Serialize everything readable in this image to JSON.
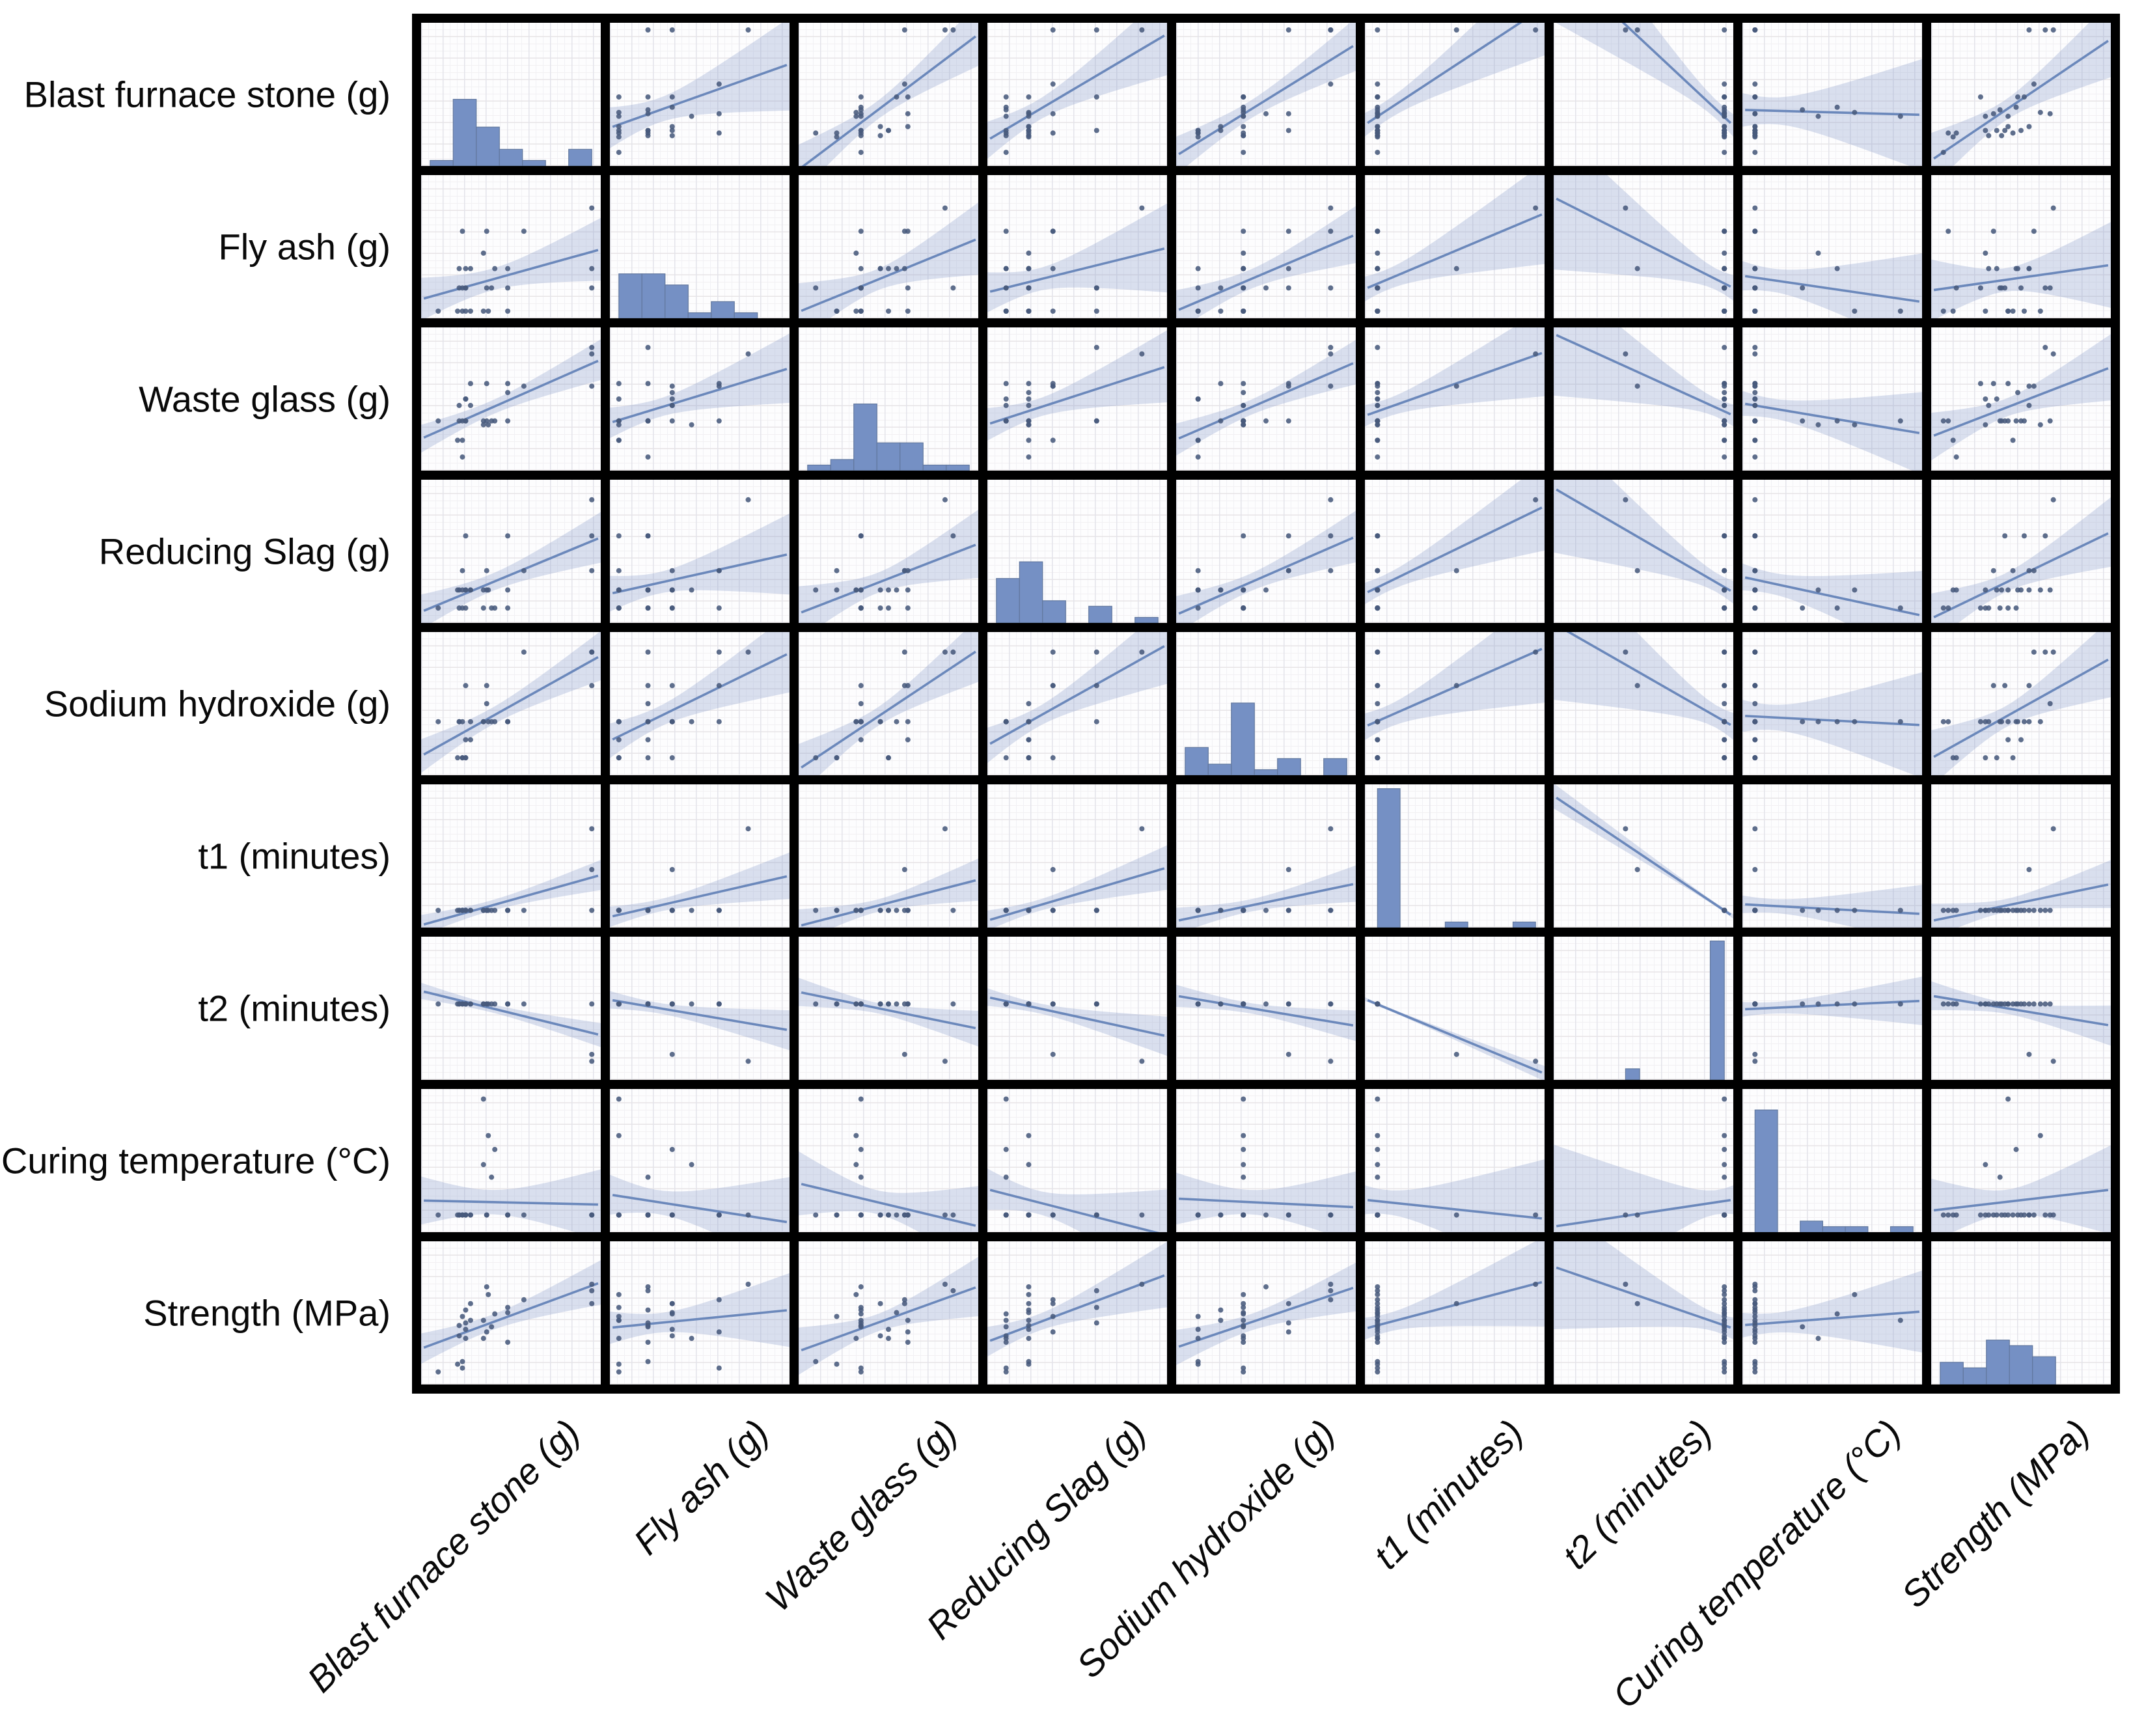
{
  "figure": {
    "type_note": "pairplot matrix: histograms on diagonal, scatter with linear regression and confidence band off-diagonal",
    "background": "#ffffff"
  },
  "chart_data": {
    "type": "scatter",
    "subtype": "pairplot-regression-matrix",
    "grid_size": 9,
    "diagonal": "histogram",
    "offdiagonal": "scatter+regression+ci",
    "legend": "none",
    "axis_tick_labels": "none visible",
    "hist_bins": 7,
    "hist_max_count": 25,
    "ci_multiplier": 2.06,
    "variables": [
      {
        "key": "bfs",
        "label": "Blast furnace stone (g)",
        "x_map": [
          0.05,
          0.9
        ],
        "y_map": [
          0.05,
          0.9
        ]
      },
      {
        "key": "flyash",
        "label": "Fly ash (g)",
        "x_map": [
          0.05,
          0.9
        ],
        "y_map": [
          0.05,
          0.9
        ]
      },
      {
        "key": "wasteglass",
        "label": "Waste glass (g)",
        "x_map": [
          0.05,
          0.9
        ],
        "y_map": [
          0.05,
          0.9
        ]
      },
      {
        "key": "redslag",
        "label": "Reducing Slag (g)",
        "x_map": [
          0.05,
          0.9
        ],
        "y_map": [
          0.05,
          0.9
        ]
      },
      {
        "key": "naoh",
        "label": "Sodium hydroxide (g)",
        "x_map": [
          0.05,
          0.9
        ],
        "y_map": [
          0.05,
          0.9
        ]
      },
      {
        "key": "t1",
        "label": "t1 (minutes)",
        "x_map": [
          0.07,
          0.88
        ],
        "y_map": [
          0.12,
          0.57
        ]
      },
      {
        "key": "t2",
        "label": "t2 (minutes)",
        "x_map": [
          0.4,
          0.55
        ],
        "y_map": [
          0.13,
          0.4
        ]
      },
      {
        "key": "curingtemp",
        "label": "Curing temperature (°C)",
        "x_map": [
          0.07,
          0.88
        ],
        "y_map": [
          0.12,
          0.88
        ]
      },
      {
        "key": "strength",
        "label": "Strength (MPa)",
        "x_map": [
          0.05,
          0.9
        ],
        "y_map": [
          0.07,
          0.9
        ]
      }
    ],
    "rows": [
      [
        0.05,
        0.0,
        0.33,
        0.06,
        0.36,
        0.0,
        1.0,
        0.0,
        0.02
      ],
      [
        0.17,
        0.0,
        0.18,
        0.2,
        0.08,
        0.0,
        1.0,
        0.0,
        0.08
      ],
      [
        0.18,
        0.18,
        0.33,
        0.2,
        0.36,
        0.0,
        1.0,
        0.0,
        0.38
      ],
      [
        0.18,
        0.33,
        0.45,
        0.06,
        0.36,
        0.0,
        1.0,
        0.0,
        0.3
      ],
      [
        0.2,
        0.18,
        0.05,
        0.2,
        0.08,
        0.0,
        1.0,
        0.0,
        0.1
      ],
      [
        0.2,
        0.0,
        0.18,
        0.35,
        0.08,
        0.0,
        1.0,
        0.0,
        0.45
      ],
      [
        0.2,
        0.62,
        0.33,
        0.06,
        0.36,
        0.0,
        1.0,
        0.0,
        0.05
      ],
      [
        0.22,
        0.18,
        0.33,
        0.2,
        0.22,
        0.0,
        1.0,
        0.0,
        0.5
      ],
      [
        0.22,
        0.33,
        0.5,
        0.2,
        0.08,
        0.0,
        1.0,
        0.0,
        0.35
      ],
      [
        0.22,
        0.0,
        0.5,
        0.06,
        0.08,
        0.0,
        1.0,
        0.0,
        0.28
      ],
      [
        0.22,
        0.18,
        0.33,
        0.62,
        0.64,
        0.0,
        1.0,
        0.0,
        0.4
      ],
      [
        0.25,
        0.33,
        0.45,
        0.2,
        0.36,
        0.0,
        1.0,
        0.0,
        0.55
      ],
      [
        0.25,
        0.0,
        0.62,
        0.2,
        0.22,
        0.0,
        1.0,
        0.0,
        0.42
      ],
      [
        0.35,
        0.18,
        0.33,
        0.2,
        0.5,
        0.0,
        1.0,
        0.0,
        0.68
      ],
      [
        0.35,
        0.62,
        0.62,
        0.35,
        0.64,
        0.0,
        1.0,
        0.0,
        0.33
      ],
      [
        0.48,
        0.0,
        0.33,
        0.62,
        0.36,
        0.0,
        1.0,
        0.0,
        0.52
      ],
      [
        0.48,
        0.33,
        0.55,
        0.2,
        0.36,
        0.0,
        1.0,
        0.0,
        0.48
      ],
      [
        0.48,
        0.18,
        0.62,
        0.06,
        0.36,
        0.0,
        1.0,
        0.0,
        0.25
      ],
      [
        0.58,
        0.62,
        0.6,
        0.35,
        0.9,
        0.0,
        1.0,
        0.0,
        0.58
      ],
      [
        1.0,
        0.18,
        0.9,
        0.62,
        0.9,
        0.0,
        1.0,
        0.0,
        0.65
      ],
      [
        0.33,
        0.0,
        0.33,
        0.06,
        0.36,
        0.0,
        1.0,
        0.92,
        0.42
      ],
      [
        0.36,
        0.0,
        0.3,
        0.2,
        0.36,
        0.0,
        1.0,
        0.63,
        0.62
      ],
      [
        0.4,
        0.33,
        0.33,
        0.06,
        0.36,
        0.0,
        1.0,
        0.52,
        0.47
      ],
      [
        0.33,
        0.45,
        0.3,
        0.2,
        0.36,
        0.0,
        1.0,
        0.4,
        0.28
      ],
      [
        0.38,
        0.18,
        0.33,
        0.06,
        0.36,
        0.0,
        1.0,
        0.3,
        0.37
      ],
      [
        1.0,
        0.33,
        0.6,
        0.35,
        0.64,
        0.5,
        0.12,
        0.0,
        0.55
      ],
      [
        1.0,
        0.8,
        0.85,
        0.9,
        0.9,
        1.0,
        0.0,
        0.0,
        0.7
      ]
    ],
    "style": {
      "bar_fill": "#7590c4",
      "bar_edge": "#62789e",
      "dot_color": "#485a7c",
      "line_color": "#6b88bb",
      "band_color": "rgba(124,148,196,0.28)",
      "border_color": "#000000",
      "grid_major": "#e3e3ea",
      "grid_minor": "#f1f1f5",
      "label_color": "#090909"
    }
  }
}
